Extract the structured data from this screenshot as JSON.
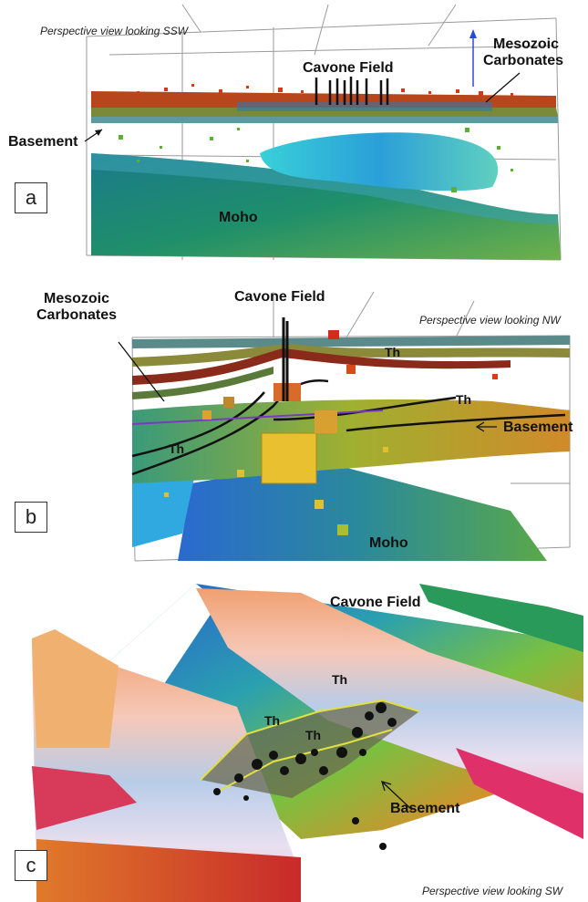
{
  "panel_a": {
    "letter": "a",
    "view_caption": "Perspective view looking SSW",
    "labels": {
      "field": "Cavone Field",
      "carbonates_line1": "Mesozoic",
      "carbonates_line2": "Carbonates",
      "basement": "Basement",
      "moho": "Moho"
    }
  },
  "panel_b": {
    "letter": "b",
    "view_caption": "Perspective view looking NW",
    "labels": {
      "field": "Cavone Field",
      "carbonates_line1": "Mesozoic",
      "carbonates_line2": "Carbonates",
      "basement": "Basement",
      "moho": "Moho",
      "thrust": "Th"
    }
  },
  "panel_c": {
    "letter": "c",
    "view_caption": "Perspective view looking SW",
    "labels": {
      "field": "Cavone Field",
      "basement": "Basement",
      "thrust": "Th"
    }
  },
  "colors": {
    "moho_start": "#1f8f6a",
    "moho_end": "#7fbf4a",
    "carbonates": "#8a7a2a",
    "seismicity": "#d23a1a",
    "basement_surface": "#e07a2a"
  }
}
